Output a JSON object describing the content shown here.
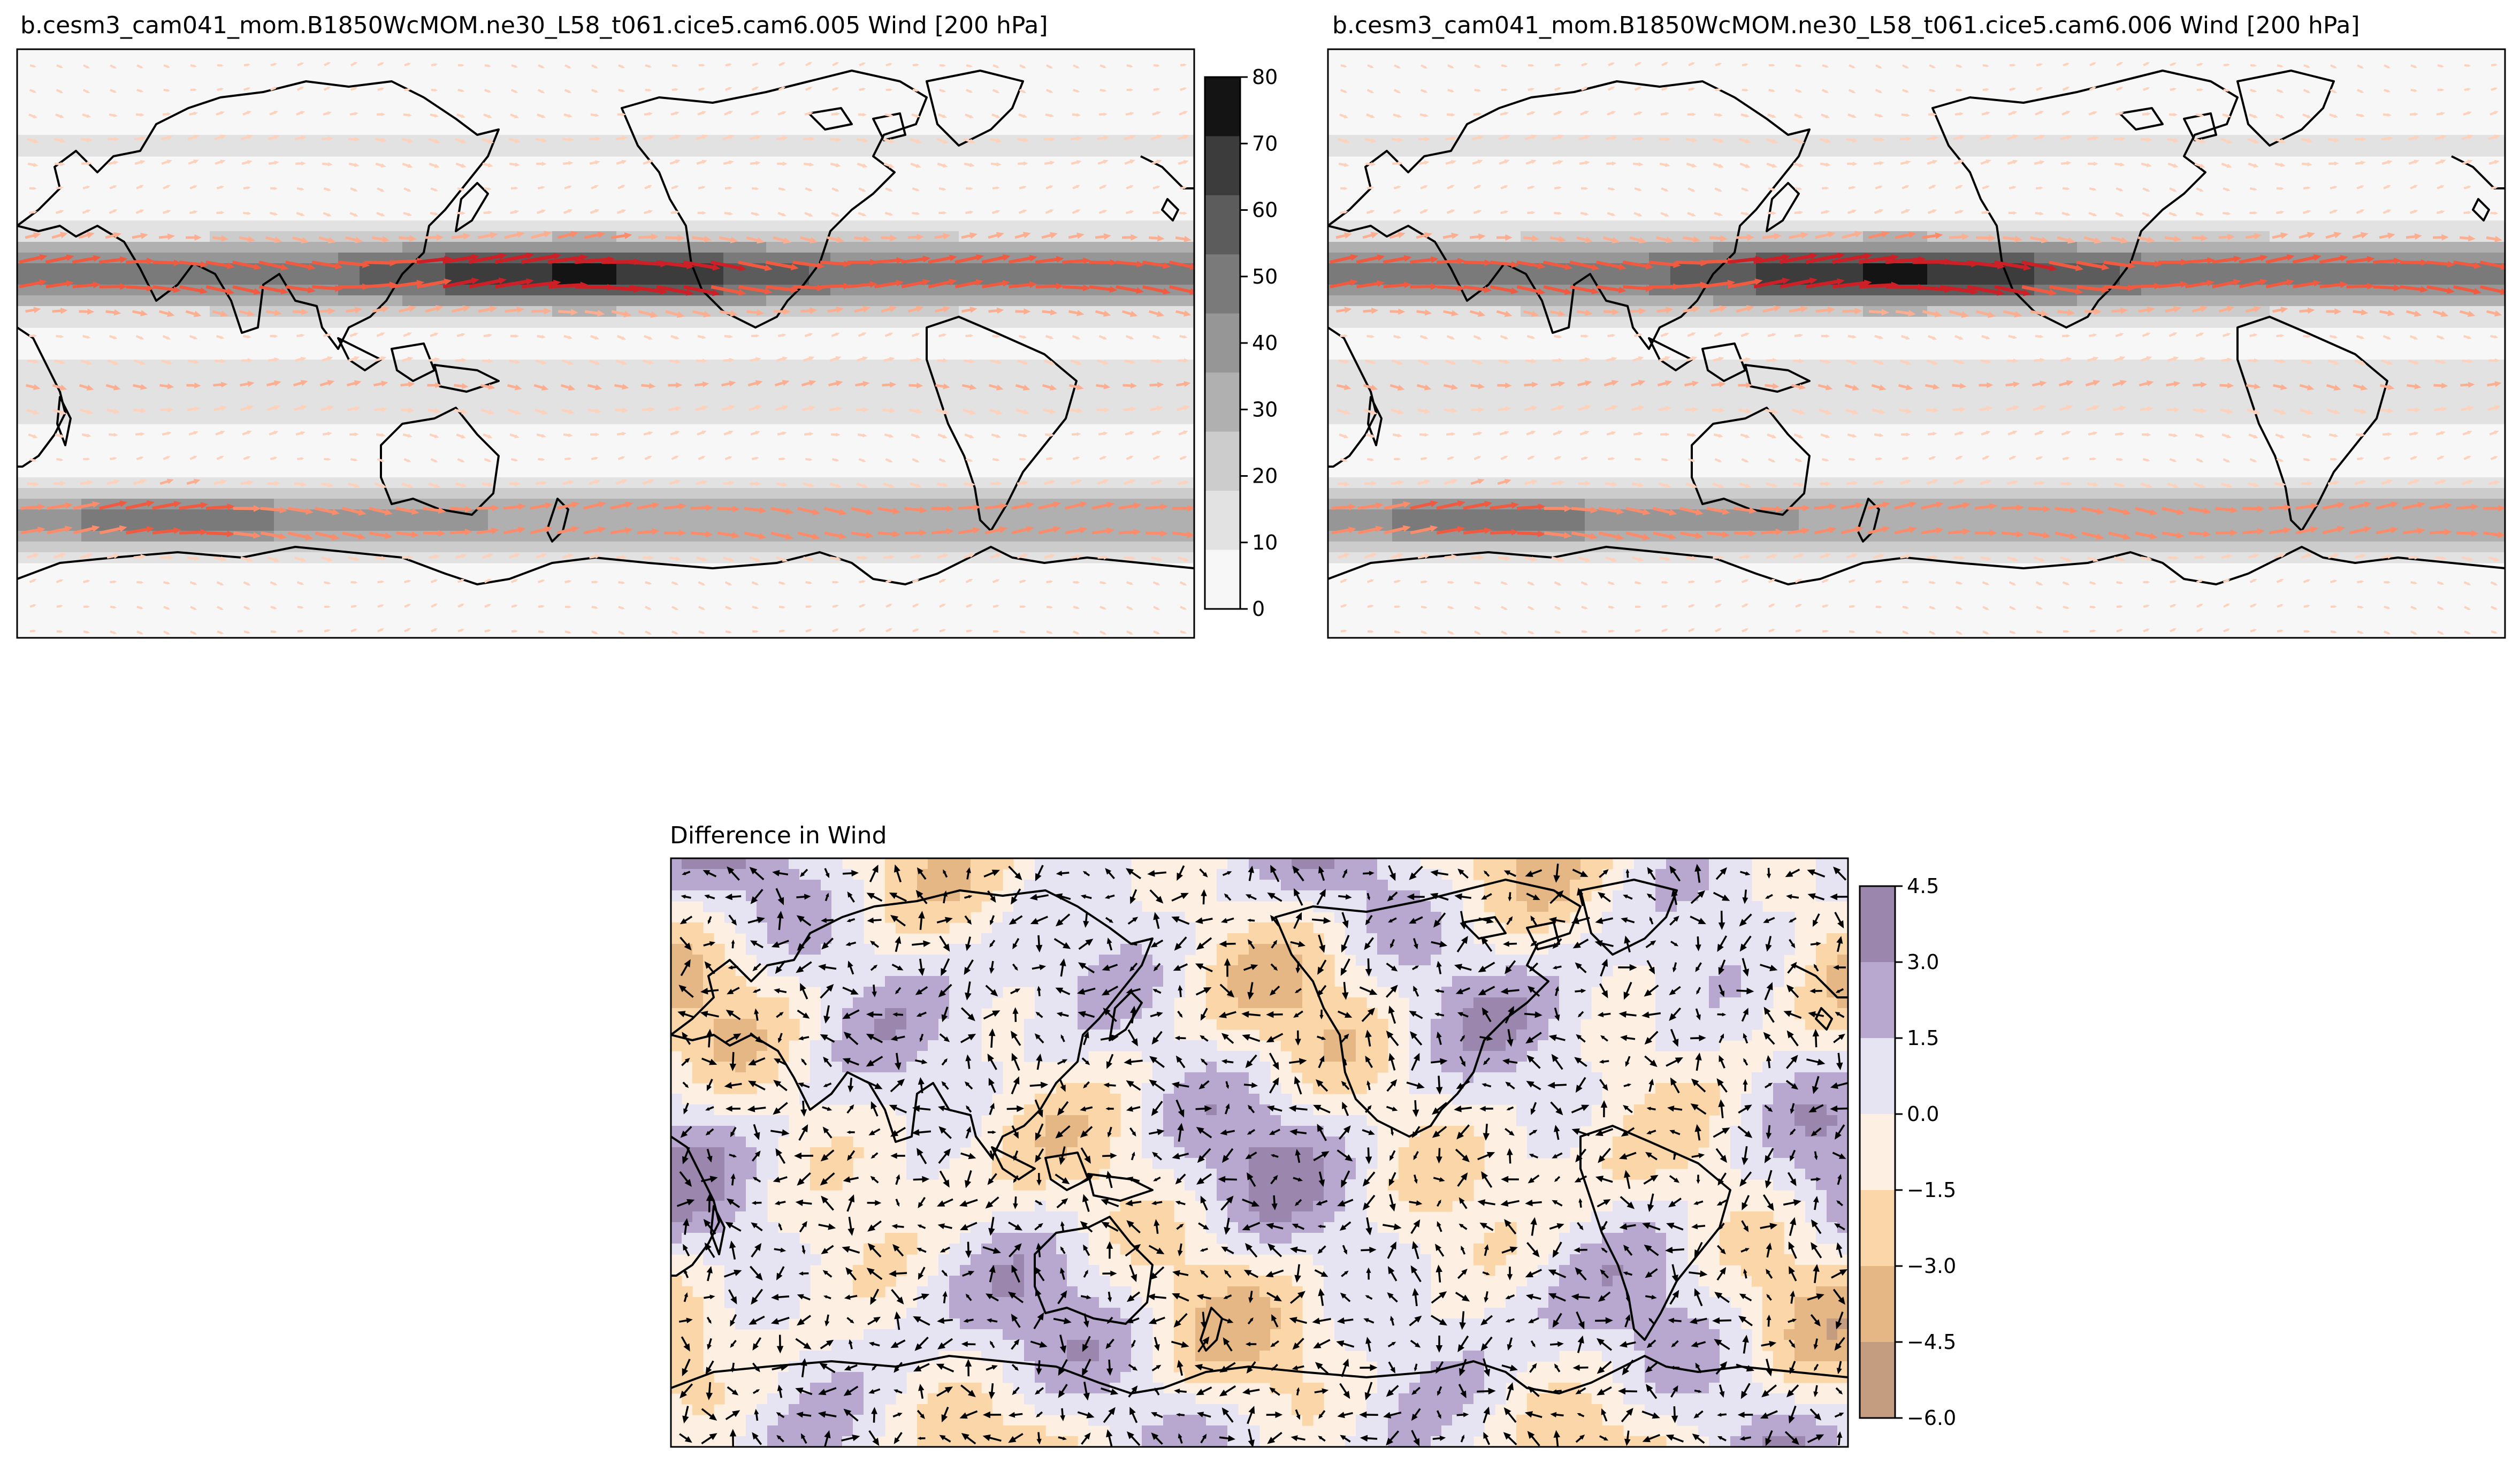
{
  "panels": [
    {
      "id": "test",
      "title": "b.cesm3_cam041_mom.B1850WcMOM.ne30_L58_t061.cice5.cam6.005 Wind [200 hPa]",
      "colorbar": {
        "ticks": [
          "0",
          "10",
          "20",
          "30",
          "40",
          "50",
          "60",
          "70",
          "80"
        ],
        "colors": [
          "#f7f7f7",
          "#e2e2e2",
          "#cccccc",
          "#b0b0b0",
          "#969696",
          "#7a7a7a",
          "#5c5c5c",
          "#3c3c3c",
          "#141414"
        ]
      },
      "vector_colors": [
        "#fdd2bd",
        "#fcae91",
        "#fb8c6b",
        "#ef5a41",
        "#cc2026"
      ]
    },
    {
      "id": "reference",
      "title": "b.cesm3_cam041_mom.B1850WcMOM.ne30_L58_t061.cice5.cam6.006 Wind [200 hPa]",
      "vector_colors": [
        "#fdd2bd",
        "#fcae91",
        "#fb8c6b",
        "#ef5a41",
        "#cc2026"
      ]
    },
    {
      "id": "difference",
      "title": "Difference in Wind",
      "colorbar": {
        "ticks": [
          "4.5",
          "3.0",
          "1.5",
          "0.0",
          "−1.5",
          "−3.0",
          "−4.5",
          "−6.0"
        ],
        "colors": [
          "#9b86ad",
          "#b8a8d0",
          "#e6e4f2",
          "#fdf0e2",
          "#fbd6a8",
          "#e5b784",
          "#c49c80"
        ]
      },
      "vector_color": "#000000"
    }
  ]
}
